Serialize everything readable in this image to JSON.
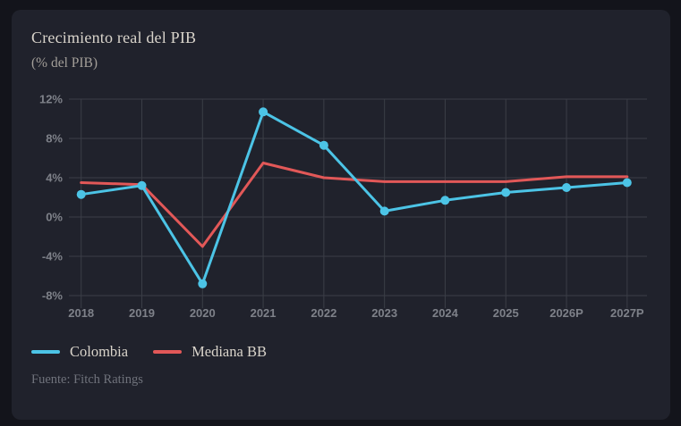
{
  "chart_data": {
    "type": "line",
    "title": "Crecimiento real del PIB",
    "subtitle": "(% del PIB)",
    "source": "Fuente: Fitch Ratings",
    "categories": [
      "2018",
      "2019",
      "2020",
      "2021",
      "2022",
      "2023",
      "2024",
      "2025",
      "2026P",
      "2027P"
    ],
    "series": [
      {
        "name": "Colombia",
        "color": "#4cc4e6",
        "markers": true,
        "values": [
          2.3,
          3.2,
          -6.8,
          10.7,
          7.3,
          0.6,
          1.7,
          2.5,
          3.0,
          3.5
        ]
      },
      {
        "name": "Mediana BB",
        "color": "#e25858",
        "markers": false,
        "values": [
          3.5,
          3.3,
          -3.0,
          5.5,
          4.0,
          3.6,
          3.6,
          3.6,
          4.1,
          4.1
        ]
      }
    ],
    "ylim": [
      -8,
      12
    ],
    "yticks": [
      {
        "value": 12,
        "label": "12%"
      },
      {
        "value": 8,
        "label": "8%"
      },
      {
        "value": 4,
        "label": "4%"
      },
      {
        "value": 0,
        "label": "0%"
      },
      {
        "value": -4,
        "label": "-4%"
      },
      {
        "value": -8,
        "label": "-8%"
      }
    ],
    "grid": true,
    "legend_position": "bottom-left"
  },
  "theme": {
    "page_bg": "#13141b",
    "card_bg": "#20222c",
    "title_color": "#d9d4cb",
    "subtitle_color": "#a39f99",
    "tick_color": "#7e8189",
    "grid_color": "#3b3e47",
    "source_color": "#6f727b",
    "legend_color": "#d9d4cb"
  }
}
